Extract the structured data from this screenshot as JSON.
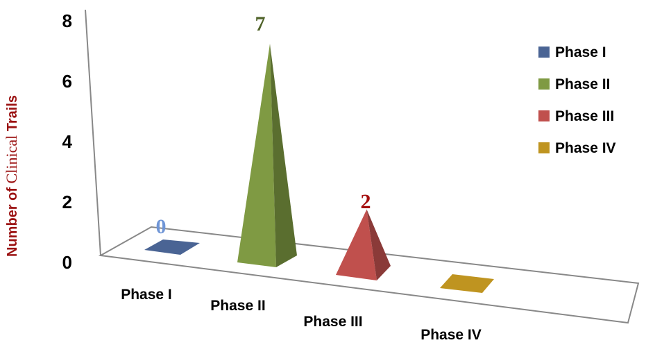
{
  "chart_data": {
    "type": "bar",
    "style": "3d-pyramid",
    "categories": [
      "Phase I",
      "Phase II",
      "Phase III",
      "Phase IV"
    ],
    "values": [
      0,
      7,
      2,
      0
    ],
    "data_labels": [
      "0",
      "7",
      "2",
      ""
    ],
    "ylabel_parts": [
      "Number of ",
      "Clinical",
      " Trails"
    ],
    "ylim": [
      0,
      8
    ],
    "yticks": [
      "0",
      "2",
      "4",
      "6",
      "8"
    ],
    "grid": false,
    "legend": {
      "placement": "right",
      "entries": [
        "Phase I",
        "Phase II",
        "Phase III",
        "Phase IV"
      ]
    },
    "colors": [
      "#4a6494",
      "#7f9a43",
      "#c0504d",
      "#bf9420"
    ],
    "dark_colors": [
      "#3a4f78",
      "#5a6e2f",
      "#8a3a38",
      "#8f6e18"
    ],
    "label_colors": [
      "#6f95d6",
      "#4f6228",
      "#a50f0f",
      "#bf9420"
    ],
    "ylabel_color": "#9b1212"
  }
}
